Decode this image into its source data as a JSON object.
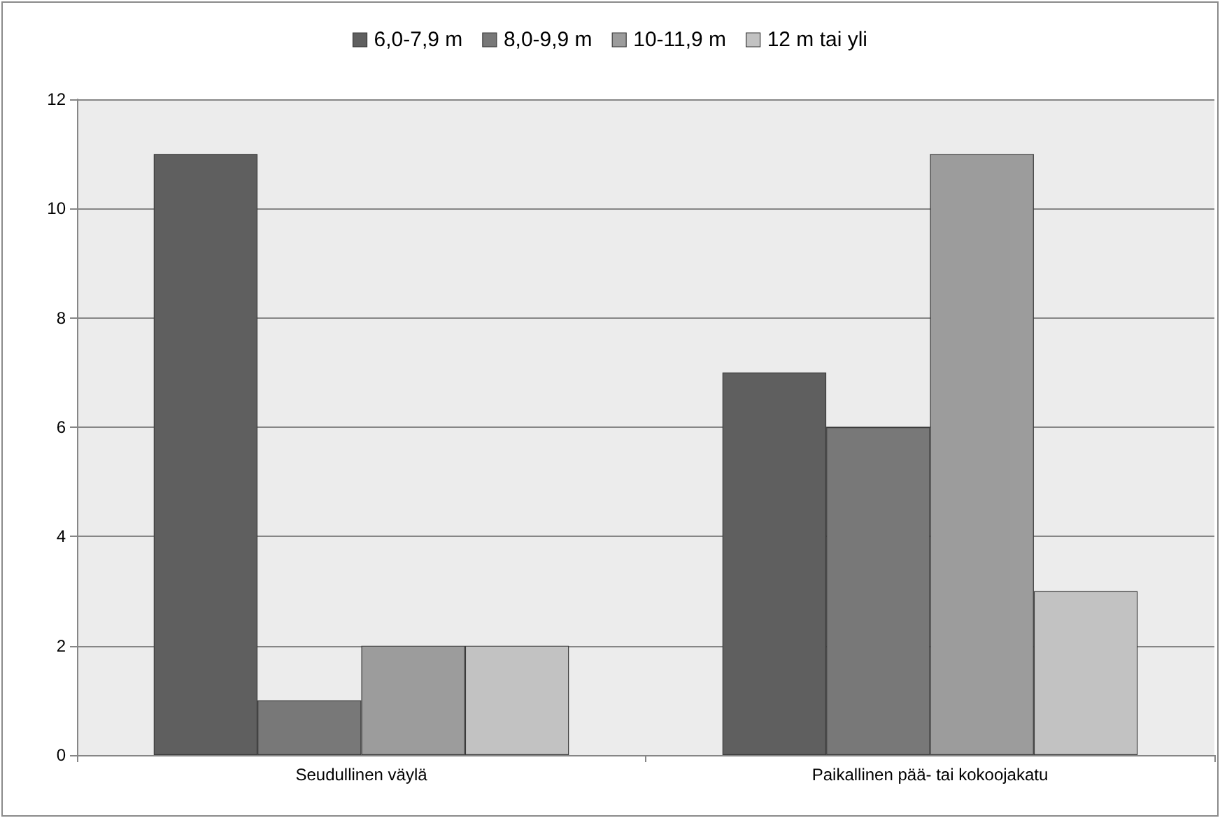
{
  "chart_data": {
    "type": "bar",
    "categories": [
      "Seudullinen väylä",
      "Paikallinen pää- tai kokoojakatu"
    ],
    "series": [
      {
        "name": "6,0-7,9 m",
        "color": "#5f5f5f",
        "values": [
          11,
          7
        ]
      },
      {
        "name": "8,0-9,9 m",
        "color": "#787878",
        "values": [
          1,
          6
        ]
      },
      {
        "name": "10-11,9 m",
        "color": "#9c9c9c",
        "values": [
          2,
          11
        ]
      },
      {
        "name": "12 m tai yli",
        "color": "#c2c2c2",
        "values": [
          2,
          3
        ]
      }
    ],
    "ylim": [
      0,
      12
    ],
    "yticks": [
      0,
      2,
      4,
      6,
      8,
      10,
      12
    ],
    "grid": "y",
    "legend": "top"
  }
}
